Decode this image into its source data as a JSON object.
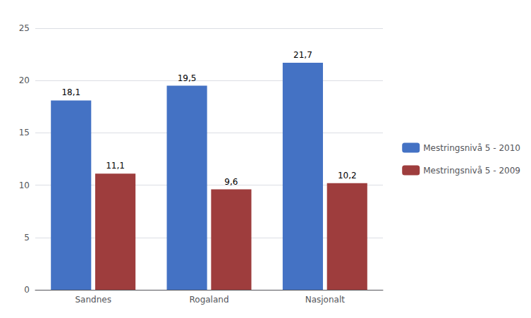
{
  "chart_data": {
    "type": "bar",
    "categories": [
      "Sandnes",
      "Rogaland",
      "Nasjonalt"
    ],
    "series": [
      {
        "name": "Mestringsnivå 5 - 2010",
        "color": "#4472C4",
        "values": [
          18.1,
          19.5,
          21.7
        ],
        "value_labels": [
          "18,1",
          "19,5",
          "21,7"
        ]
      },
      {
        "name": "Mestringsnivå 5 - 2009",
        "color": "#9E3D3D",
        "values": [
          11.1,
          9.6,
          10.2
        ],
        "value_labels": [
          "11,1",
          "9,6",
          "10,2"
        ]
      }
    ],
    "ylim": [
      0,
      25
    ],
    "yticks": [
      0,
      5,
      10,
      15,
      20,
      25
    ],
    "grid": true,
    "legend": "right",
    "data_labels": true
  }
}
